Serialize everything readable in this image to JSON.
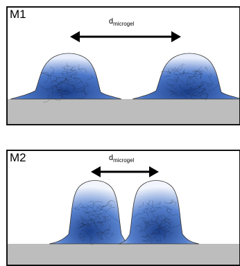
{
  "panels": [
    {
      "id": "m1",
      "label": "M1",
      "distance_label_main": "d",
      "distance_label_sub": "microgel"
    },
    {
      "id": "m2",
      "label": "M2",
      "distance_label_main": "d",
      "distance_label_sub": "microgel"
    }
  ],
  "colors": {
    "substrate": "#bdbdbd",
    "microgel_dark": "#1c3f8a",
    "microgel_light": "#e8eefb",
    "fiber": "#111111",
    "outline": "#333333"
  }
}
